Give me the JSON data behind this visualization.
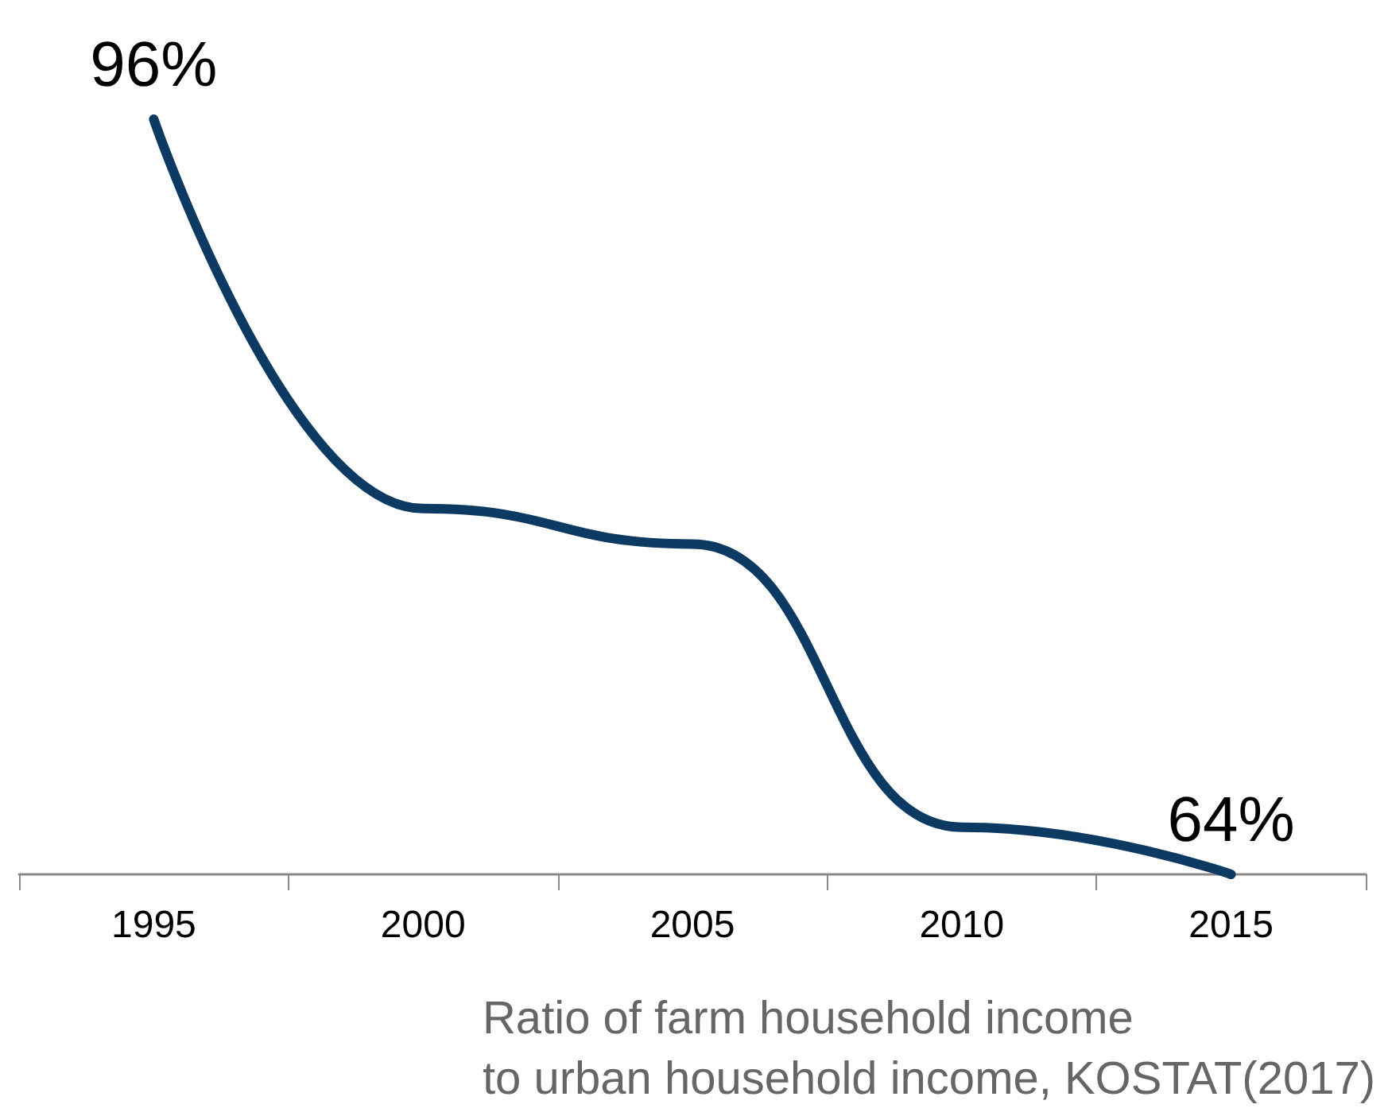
{
  "chart_data": {
    "type": "line",
    "categories": [
      "1995",
      "2000",
      "2005",
      "2010",
      "2015"
    ],
    "values": [
      96,
      79.5,
      78,
      66,
      64
    ],
    "value_labels": [
      "96%",
      null,
      null,
      null,
      "64%"
    ],
    "color": "#0d3a63",
    "marker": "none",
    "line_style": "solid",
    "annotations": [
      "Ratio of farm household income\nto urban household income, KOSTAT(2017)"
    ]
  }
}
